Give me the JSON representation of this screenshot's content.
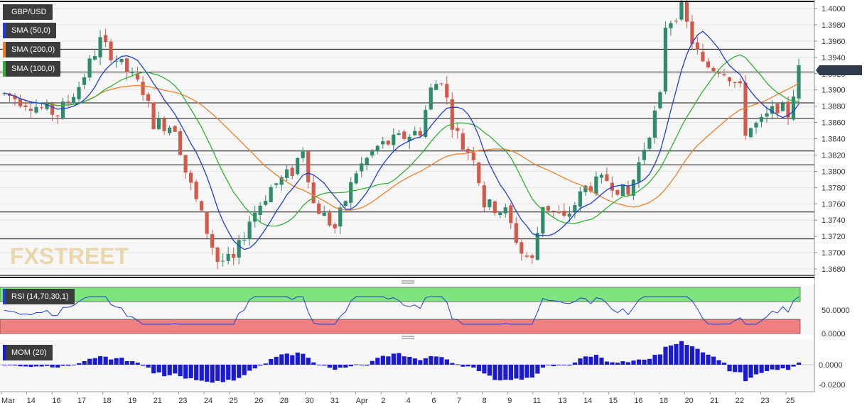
{
  "chart_data": [
    {
      "type": "candlestick",
      "title": "GBP/USD",
      "indicators": [
        {
          "name": "SMA (50,0)",
          "color": "#1f3fd6"
        },
        {
          "name": "SMA (200,0)",
          "color": "#f07f2a"
        },
        {
          "name": "SMA (100,0)",
          "color": "#33b233"
        }
      ],
      "ylim": [
        1.367,
        1.4005
      ],
      "yticks": [
        "1.3680",
        "1.3700",
        "1.3720",
        "1.3740",
        "1.3760",
        "1.3780",
        "1.3800",
        "1.3820",
        "1.3840",
        "1.3860",
        "1.3880",
        "1.3900",
        "1.3920",
        "1.3940",
        "1.3960",
        "1.3980",
        "1.4000"
      ],
      "last_price": "1.39243",
      "horizontal_levels": [
        1.395,
        1.3922,
        1.3884,
        1.3865,
        1.3825,
        1.3808,
        1.375,
        1.3717,
        1.3672
      ],
      "x_labels": [
        "Mar",
        "14",
        "16",
        "17",
        "18",
        "19",
        "21",
        "23",
        "24",
        "25",
        "26",
        "28",
        "30",
        "31",
        "Apr",
        "2",
        "4",
        "6",
        "7",
        "8",
        "9",
        "11",
        "13",
        "14",
        "15",
        "16",
        "18",
        "20",
        "21",
        "22",
        "23",
        "25"
      ],
      "watermark": "FXSTREET",
      "candle_colors": {
        "up": "#2e8b6e",
        "down": "#d35a4a"
      }
    },
    {
      "type": "line",
      "title": "RSI (14,70,30,1)",
      "yticks": [
        "50.0000",
        "0.0000"
      ],
      "overbought_color": "#7ee57e",
      "oversold_color": "#f08080",
      "line_color": "#1f3fd6"
    },
    {
      "type": "bar",
      "title": "MOM (20)",
      "yticks": [
        "0.0000",
        "-0.0200"
      ],
      "bar_color": "#1a1ad6"
    }
  ],
  "price_label_bg": "#2f3b4c"
}
